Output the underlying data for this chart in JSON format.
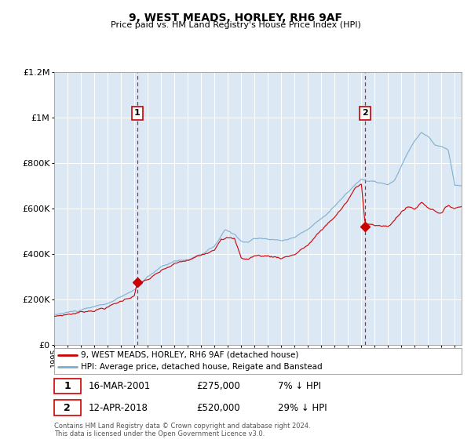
{
  "title": "9, WEST MEADS, HORLEY, RH6 9AF",
  "subtitle": "Price paid vs. HM Land Registry's House Price Index (HPI)",
  "legend_line1": "9, WEST MEADS, HORLEY, RH6 9AF (detached house)",
  "legend_line2": "HPI: Average price, detached house, Reigate and Banstead",
  "annotation1_date": "16-MAR-2001",
  "annotation1_price": "£275,000",
  "annotation1_hpi": "7% ↓ HPI",
  "annotation1_year": 2001.21,
  "annotation1_value": 275000,
  "annotation2_date": "12-APR-2018",
  "annotation2_price": "£520,000",
  "annotation2_hpi": "29% ↓ HPI",
  "annotation2_year": 2018.28,
  "annotation2_value": 520000,
  "xmin": 1995,
  "xmax": 2025.5,
  "ymin": 0,
  "ymax": 1200000,
  "yticks": [
    0,
    200000,
    400000,
    600000,
    800000,
    1000000,
    1200000
  ],
  "ytick_labels": [
    "£0",
    "£200K",
    "£400K",
    "£600K",
    "£800K",
    "£1M",
    "£1.2M"
  ],
  "background_color": "#dce9f5",
  "line_color_red": "#cc0000",
  "line_color_blue": "#7aacce",
  "dashed_line_color": "#cc0000",
  "grid_color": "#ffffff",
  "copyright_text": "Contains HM Land Registry data © Crown copyright and database right 2024.\nThis data is licensed under the Open Government Licence v3.0.",
  "footnote_color": "#555555"
}
